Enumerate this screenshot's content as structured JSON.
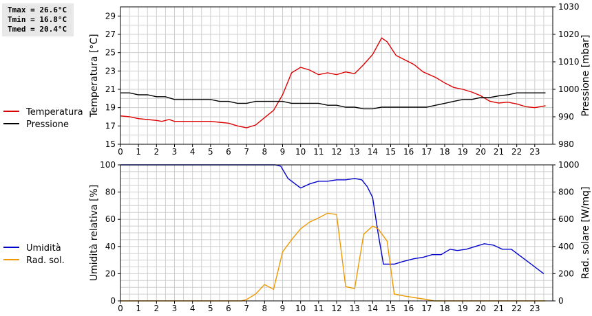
{
  "stats": {
    "tmax": "Tmax = 26.6°C",
    "tmin": "Tmin = 16.8°C",
    "tmed": "Tmed = 20.4°C"
  },
  "chart_data": [
    {
      "type": "line",
      "xlabel": "",
      "xlim": [
        0,
        24
      ],
      "x_ticks": [
        "0",
        "1",
        "2",
        "3",
        "4",
        "5",
        "6",
        "7",
        "8",
        "9",
        "10",
        "11",
        "12",
        "13",
        "14",
        "15",
        "16",
        "17",
        "18",
        "19",
        "20",
        "21",
        "22",
        "23"
      ],
      "ylabel": "Temperatura [°C]",
      "ylim": [
        15,
        30
      ],
      "y_ticks": [
        "15",
        "17",
        "19",
        "21",
        "23",
        "25",
        "27",
        "29"
      ],
      "y2label": "Pressione [mbar]",
      "y2lim": [
        980,
        1030
      ],
      "y2_ticks": [
        "980",
        "990",
        "1000",
        "1010",
        "1020",
        "1030"
      ],
      "grid": true,
      "legend": "left",
      "series": [
        {
          "name": "Temperatura",
          "axis": "left",
          "color": "#dd0000",
          "points": [
            [
              0,
              18.1
            ],
            [
              0.5,
              18.0
            ],
            [
              1,
              17.8
            ],
            [
              1.5,
              17.7
            ],
            [
              2,
              17.6
            ],
            [
              2.3,
              17.5
            ],
            [
              2.7,
              17.7
            ],
            [
              3,
              17.5
            ],
            [
              3.5,
              17.5
            ],
            [
              4,
              17.5
            ],
            [
              4.5,
              17.5
            ],
            [
              5,
              17.5
            ],
            [
              5.5,
              17.4
            ],
            [
              6,
              17.3
            ],
            [
              6.5,
              17.0
            ],
            [
              7,
              16.8
            ],
            [
              7.5,
              17.1
            ],
            [
              8,
              17.9
            ],
            [
              8.5,
              18.7
            ],
            [
              9,
              20.4
            ],
            [
              9.5,
              22.8
            ],
            [
              10,
              23.4
            ],
            [
              10.5,
              23.1
            ],
            [
              11,
              22.6
            ],
            [
              11.5,
              22.8
            ],
            [
              12,
              22.6
            ],
            [
              12.5,
              22.9
            ],
            [
              13,
              22.7
            ],
            [
              13.5,
              23.7
            ],
            [
              14,
              24.8
            ],
            [
              14.5,
              26.6
            ],
            [
              14.8,
              26.2
            ],
            [
              15.3,
              24.7
            ],
            [
              15.8,
              24.2
            ],
            [
              16.3,
              23.7
            ],
            [
              16.8,
              22.9
            ],
            [
              17.5,
              22.3
            ],
            [
              18,
              21.7
            ],
            [
              18.5,
              21.2
            ],
            [
              19,
              21.0
            ],
            [
              19.5,
              20.7
            ],
            [
              20,
              20.3
            ],
            [
              20.5,
              19.7
            ],
            [
              21,
              19.5
            ],
            [
              21.5,
              19.6
            ],
            [
              22,
              19.4
            ],
            [
              22.5,
              19.1
            ],
            [
              23,
              19.0
            ],
            [
              23.6,
              19.2
            ]
          ]
        },
        {
          "name": "Pressione",
          "axis": "right",
          "color": "#000000",
          "points": [
            [
              0,
              998.7
            ],
            [
              0.5,
              998.7
            ],
            [
              1,
              998
            ],
            [
              1.5,
              998
            ],
            [
              2,
              997.3
            ],
            [
              2.5,
              997.3
            ],
            [
              3,
              996.3
            ],
            [
              3.5,
              996.3
            ],
            [
              4,
              996.3
            ],
            [
              4.5,
              996.3
            ],
            [
              5,
              996.3
            ],
            [
              5.5,
              995.6
            ],
            [
              6,
              995.6
            ],
            [
              6.5,
              994.9
            ],
            [
              7,
              994.9
            ],
            [
              7.5,
              995.6
            ],
            [
              8,
              995.6
            ],
            [
              8.5,
              995.6
            ],
            [
              9,
              995.6
            ],
            [
              9.5,
              994.9
            ],
            [
              10,
              994.9
            ],
            [
              10.5,
              994.9
            ],
            [
              11,
              994.9
            ],
            [
              11.5,
              994.2
            ],
            [
              12,
              994.2
            ],
            [
              12.5,
              993.5
            ],
            [
              13,
              993.5
            ],
            [
              13.5,
              992.9
            ],
            [
              14,
              992.9
            ],
            [
              14.5,
              993.5
            ],
            [
              15,
              993.5
            ],
            [
              15.5,
              993.5
            ],
            [
              16,
              993.5
            ],
            [
              16.5,
              993.5
            ],
            [
              17,
              993.5
            ],
            [
              17.5,
              994.2
            ],
            [
              18,
              994.9
            ],
            [
              18.5,
              995.6
            ],
            [
              19,
              996.3
            ],
            [
              19.5,
              996.3
            ],
            [
              20,
              997
            ],
            [
              20.5,
              997
            ],
            [
              21,
              997.6
            ],
            [
              21.5,
              998
            ],
            [
              22,
              998.7
            ],
            [
              22.5,
              998.7
            ],
            [
              23,
              998.7
            ],
            [
              23.6,
              998.7
            ]
          ]
        }
      ]
    },
    {
      "type": "line",
      "xlabel": "",
      "xlim": [
        0,
        24
      ],
      "x_ticks": [
        "0",
        "1",
        "2",
        "3",
        "4",
        "5",
        "6",
        "7",
        "8",
        "9",
        "10",
        "11",
        "12",
        "13",
        "14",
        "15",
        "16",
        "17",
        "18",
        "19",
        "20",
        "21",
        "22",
        "23"
      ],
      "ylabel": "Umidità relativa [%]",
      "ylim": [
        0,
        100
      ],
      "y_ticks": [
        "0",
        "20",
        "40",
        "60",
        "80",
        "100"
      ],
      "y2label": "Rad. solare [W/mq]",
      "y2lim": [
        0,
        1000
      ],
      "y2_ticks": [
        "0",
        "200",
        "400",
        "600",
        "800",
        "1000"
      ],
      "grid": true,
      "legend": "left",
      "series": [
        {
          "name": "Umidità",
          "axis": "left",
          "color": "#0000cc",
          "points": [
            [
              0,
              100
            ],
            [
              8.6,
              100
            ],
            [
              8.9,
              99
            ],
            [
              9.3,
              90
            ],
            [
              9.7,
              86
            ],
            [
              10,
              83
            ],
            [
              10.5,
              86
            ],
            [
              11,
              88
            ],
            [
              11.5,
              88
            ],
            [
              12,
              89
            ],
            [
              12.5,
              89
            ],
            [
              13,
              90
            ],
            [
              13.4,
              89
            ],
            [
              13.7,
              84
            ],
            [
              14,
              76
            ],
            [
              14.3,
              50
            ],
            [
              14.6,
              27
            ],
            [
              15.2,
              27
            ],
            [
              15.7,
              29
            ],
            [
              16.3,
              31
            ],
            [
              16.8,
              32
            ],
            [
              17.3,
              34
            ],
            [
              17.8,
              34
            ],
            [
              18.3,
              38
            ],
            [
              18.7,
              37
            ],
            [
              19.2,
              38
            ],
            [
              19.7,
              40
            ],
            [
              20.2,
              42
            ],
            [
              20.7,
              41
            ],
            [
              21.2,
              38
            ],
            [
              21.7,
              38
            ],
            [
              22.2,
              33
            ],
            [
              22.8,
              27
            ],
            [
              23.5,
              20
            ]
          ]
        },
        {
          "name": "Rad. sol.",
          "axis": "right",
          "color": "#ee9900",
          "points": [
            [
              0,
              0
            ],
            [
              6.7,
              0
            ],
            [
              7,
              10
            ],
            [
              7.5,
              50
            ],
            [
              8,
              120
            ],
            [
              8.5,
              85
            ],
            [
              9,
              360
            ],
            [
              9.5,
              450
            ],
            [
              10,
              530
            ],
            [
              10.5,
              580
            ],
            [
              11,
              610
            ],
            [
              11.5,
              645
            ],
            [
              12,
              635
            ],
            [
              12.5,
              105
            ],
            [
              13,
              90
            ],
            [
              13.5,
              490
            ],
            [
              14,
              550
            ],
            [
              14.3,
              530
            ],
            [
              14.8,
              440
            ],
            [
              15.2,
              50
            ],
            [
              15.8,
              35
            ],
            [
              16.5,
              20
            ],
            [
              17,
              10
            ],
            [
              17.4,
              0
            ],
            [
              23.6,
              0
            ]
          ]
        }
      ]
    }
  ]
}
